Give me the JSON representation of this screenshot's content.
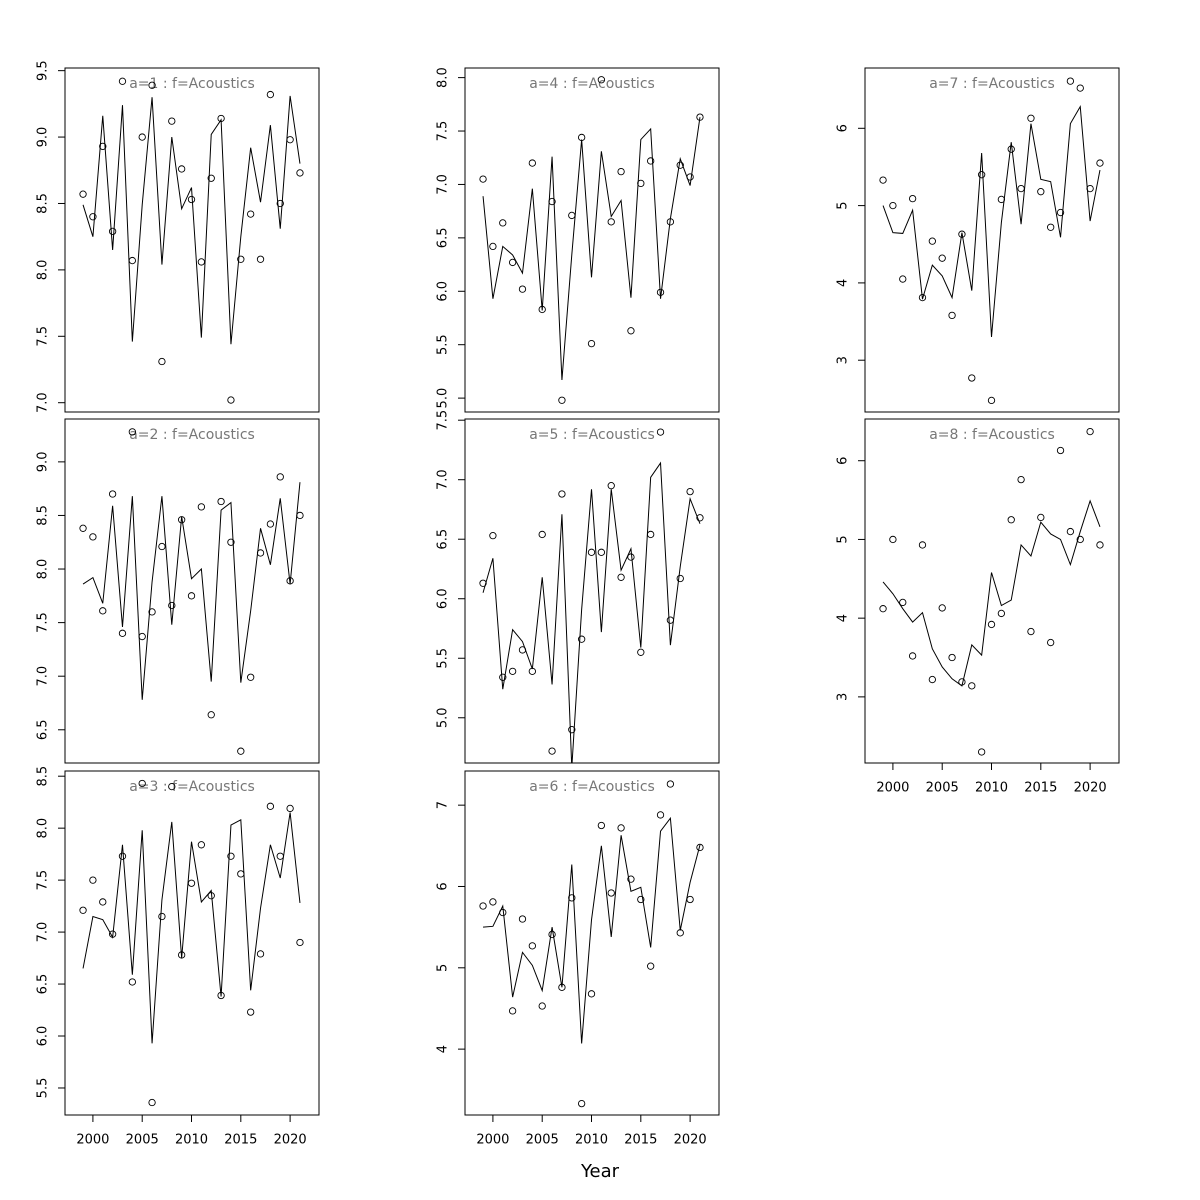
{
  "xlabel": "Year",
  "chart_data": [
    {
      "type": "line",
      "title": "a=1  :  f=Acoustics",
      "x": [
        1999,
        2000,
        2001,
        2002,
        2003,
        2004,
        2005,
        2006,
        2007,
        2008,
        2009,
        2010,
        2011,
        2012,
        2013,
        2014,
        2015,
        2016,
        2017,
        2018,
        2019,
        2020,
        2021
      ],
      "xlim": [
        1997.17,
        2022.93
      ],
      "ylim": [
        6.93,
        9.52
      ],
      "yticks": [
        {
          "value": 7,
          "label": "7.0"
        },
        {
          "value": 7.5,
          "label": "7.5"
        },
        {
          "value": 8,
          "label": "8.0"
        },
        {
          "value": 8.5,
          "label": "8.5"
        },
        {
          "value": 9,
          "label": "9.0"
        },
        {
          "value": 9.5,
          "label": "9.5"
        }
      ],
      "series": [
        {
          "style": "points",
          "color": "#000000",
          "values": [
            8.57,
            8.4,
            8.93,
            8.29,
            9.42,
            8.07,
            9.0,
            9.39,
            7.31,
            9.12,
            8.76,
            8.53,
            8.06,
            8.69,
            9.14,
            7.02,
            8.08,
            8.42,
            8.08,
            9.32,
            8.5,
            8.98,
            8.73
          ]
        },
        {
          "style": "line",
          "color": "#000000",
          "values": [
            8.49,
            8.25,
            9.16,
            8.15,
            9.24,
            7.46,
            8.49,
            9.3,
            8.04,
            9.0,
            8.46,
            8.62,
            7.49,
            9.02,
            9.13,
            7.44,
            8.25,
            8.92,
            8.51,
            9.09,
            8.31,
            9.31,
            8.8
          ]
        }
      ]
    },
    {
      "type": "line",
      "title": "a=2  :  f=Acoustics",
      "x": [
        1999,
        2000,
        2001,
        2002,
        2003,
        2004,
        2005,
        2006,
        2007,
        2008,
        2009,
        2010,
        2011,
        2012,
        2013,
        2014,
        2015,
        2016,
        2017,
        2018,
        2019,
        2020,
        2021
      ],
      "xlim": [
        1997.17,
        2022.93
      ],
      "ylim": [
        6.19,
        9.4
      ],
      "yticks": [
        {
          "value": 6.5,
          "label": "6.5"
        },
        {
          "value": 7,
          "label": "7.0"
        },
        {
          "value": 7.5,
          "label": "7.5"
        },
        {
          "value": 8,
          "label": "8.0"
        },
        {
          "value": 8.5,
          "label": "8.5"
        },
        {
          "value": 9,
          "label": "9.0"
        }
      ],
      "series": [
        {
          "style": "points",
          "color": "#000000",
          "values": [
            8.38,
            8.3,
            7.61,
            8.7,
            7.4,
            9.28,
            7.37,
            7.6,
            8.21,
            7.66,
            8.46,
            7.75,
            8.58,
            6.64,
            8.63,
            8.25,
            6.3,
            6.99,
            8.15,
            8.42,
            8.86,
            7.89,
            8.5
          ]
        },
        {
          "style": "line",
          "color": "#000000",
          "values": [
            7.86,
            7.92,
            7.68,
            8.59,
            7.46,
            8.68,
            6.78,
            7.88,
            8.68,
            7.48,
            8.49,
            7.91,
            8.0,
            6.95,
            8.55,
            8.62,
            6.94,
            7.61,
            8.38,
            8.04,
            8.66,
            7.86,
            8.81
          ]
        }
      ]
    },
    {
      "type": "line",
      "title": "a=3  :  f=Acoustics",
      "x": [
        1999,
        2000,
        2001,
        2002,
        2003,
        2004,
        2005,
        2006,
        2007,
        2008,
        2009,
        2010,
        2011,
        2012,
        2013,
        2014,
        2015,
        2016,
        2017,
        2018,
        2019,
        2020,
        2021
      ],
      "xlim": [
        1997.17,
        2022.93
      ],
      "ylim": [
        5.24,
        8.55
      ],
      "xticks": [
        2000,
        2005,
        2010,
        2015,
        2020
      ],
      "yticks": [
        {
          "value": 5.5,
          "label": "5.5"
        },
        {
          "value": 6,
          "label": "6.0"
        },
        {
          "value": 6.5,
          "label": "6.5"
        },
        {
          "value": 7,
          "label": "7.0"
        },
        {
          "value": 7.5,
          "label": "7.5"
        },
        {
          "value": 8,
          "label": "8.0"
        },
        {
          "value": 8.5,
          "label": "8.5"
        }
      ],
      "series": [
        {
          "style": "points",
          "color": "#000000",
          "values": [
            7.21,
            7.5,
            7.29,
            6.98,
            7.73,
            6.52,
            8.43,
            5.36,
            7.15,
            8.4,
            6.78,
            7.47,
            7.84,
            7.35,
            6.39,
            7.73,
            7.56,
            6.23,
            6.79,
            8.21,
            7.73,
            8.19,
            6.9
          ]
        },
        {
          "style": "line",
          "color": "#000000",
          "values": [
            6.65,
            7.15,
            7.12,
            6.95,
            7.84,
            6.59,
            7.98,
            5.93,
            7.31,
            8.06,
            6.75,
            7.87,
            7.29,
            7.4,
            6.38,
            8.03,
            8.08,
            6.44,
            7.23,
            7.84,
            7.52,
            8.15,
            7.28
          ]
        }
      ]
    },
    {
      "type": "line",
      "title": "a=4  :  f=Acoustics",
      "x": [
        1999,
        2000,
        2001,
        2002,
        2003,
        2004,
        2005,
        2006,
        2007,
        2008,
        2009,
        2010,
        2011,
        2012,
        2013,
        2014,
        2015,
        2016,
        2017,
        2018,
        2019,
        2020,
        2021
      ],
      "xlim": [
        1997.17,
        2022.93
      ],
      "ylim": [
        4.87,
        8.09
      ],
      "yticks": [
        {
          "value": 5,
          "label": "5.0"
        },
        {
          "value": 5.5,
          "label": "5.5"
        },
        {
          "value": 6,
          "label": "6.0"
        },
        {
          "value": 6.5,
          "label": "6.5"
        },
        {
          "value": 7,
          "label": "7.0"
        },
        {
          "value": 7.5,
          "label": "7.5"
        },
        {
          "value": 8,
          "label": "8.0"
        }
      ],
      "series": [
        {
          "style": "points",
          "color": "#000000",
          "values": [
            7.05,
            6.42,
            6.64,
            6.27,
            6.02,
            7.2,
            5.83,
            6.84,
            4.98,
            6.71,
            7.44,
            5.51,
            7.98,
            6.65,
            7.12,
            5.63,
            7.01,
            7.22,
            5.99,
            6.65,
            7.18,
            7.07,
            7.63
          ]
        },
        {
          "style": "line",
          "color": "#000000",
          "values": [
            6.89,
            5.93,
            6.42,
            6.34,
            6.17,
            6.96,
            5.82,
            7.26,
            5.17,
            6.34,
            7.42,
            6.13,
            7.31,
            6.7,
            6.85,
            5.94,
            7.42,
            7.52,
            5.93,
            6.68,
            7.24,
            6.99,
            7.63
          ]
        }
      ]
    },
    {
      "type": "line",
      "title": "a=5  :  f=Acoustics",
      "x": [
        1999,
        2000,
        2001,
        2002,
        2003,
        2004,
        2005,
        2006,
        2007,
        2008,
        2009,
        2010,
        2011,
        2012,
        2013,
        2014,
        2015,
        2016,
        2017,
        2018,
        2019,
        2020,
        2021
      ],
      "xlim": [
        1997.17,
        2022.93
      ],
      "ylim": [
        4.62,
        7.51
      ],
      "yticks": [
        {
          "value": 5,
          "label": "5.0"
        },
        {
          "value": 5.5,
          "label": "5.5"
        },
        {
          "value": 6,
          "label": "6.0"
        },
        {
          "value": 6.5,
          "label": "6.5"
        },
        {
          "value": 7,
          "label": "7.0"
        },
        {
          "value": 7.5,
          "label": "7.5"
        }
      ],
      "series": [
        {
          "style": "points",
          "color": "#000000",
          "values": [
            6.13,
            6.53,
            5.34,
            5.39,
            5.57,
            5.39,
            6.54,
            4.72,
            6.88,
            4.9,
            5.66,
            6.39,
            6.39,
            6.95,
            6.18,
            6.35,
            5.55,
            6.54,
            7.4,
            5.82,
            6.17,
            6.9,
            6.68
          ]
        },
        {
          "style": "line",
          "color": "#000000",
          "values": [
            6.05,
            6.34,
            5.24,
            5.74,
            5.64,
            5.41,
            6.18,
            5.28,
            6.71,
            4.58,
            5.91,
            6.92,
            5.72,
            6.92,
            6.24,
            6.42,
            5.59,
            7.02,
            7.14,
            5.61,
            6.27,
            6.84,
            6.63
          ]
        }
      ]
    },
    {
      "type": "line",
      "title": "a=6  :  f=Acoustics",
      "x": [
        1999,
        2000,
        2001,
        2002,
        2003,
        2004,
        2005,
        2006,
        2007,
        2008,
        2009,
        2010,
        2011,
        2012,
        2013,
        2014,
        2015,
        2016,
        2017,
        2018,
        2019,
        2020,
        2021
      ],
      "xlim": [
        1997.17,
        2022.93
      ],
      "ylim": [
        3.19,
        7.42
      ],
      "xticks": [
        2000,
        2005,
        2010,
        2015,
        2020
      ],
      "yticks": [
        4,
        5,
        6,
        7
      ],
      "series": [
        {
          "style": "points",
          "color": "#000000",
          "values": [
            5.76,
            5.81,
            5.68,
            4.47,
            5.6,
            5.27,
            4.53,
            5.41,
            4.76,
            5.86,
            3.33,
            4.68,
            6.75,
            5.92,
            6.72,
            6.09,
            5.84,
            5.02,
            6.88,
            7.26,
            5.43,
            5.84,
            6.48
          ]
        },
        {
          "style": "line",
          "color": "#000000",
          "values": [
            5.5,
            5.51,
            5.76,
            4.64,
            5.19,
            5.03,
            4.72,
            5.5,
            4.76,
            6.27,
            4.07,
            5.59,
            6.5,
            5.38,
            6.63,
            5.94,
            5.99,
            5.25,
            6.68,
            6.84,
            5.46,
            6.05,
            6.51
          ]
        }
      ]
    },
    {
      "type": "line",
      "title": "a=7  :  f=Acoustics",
      "x": [
        1999,
        2000,
        2001,
        2002,
        2003,
        2004,
        2005,
        2006,
        2007,
        2008,
        2009,
        2010,
        2011,
        2012,
        2013,
        2014,
        2015,
        2016,
        2017,
        2018,
        2019,
        2020,
        2021
      ],
      "xlim": [
        1997.17,
        2022.93
      ],
      "ylim": [
        2.33,
        6.78
      ],
      "yticks": [
        3,
        4,
        5,
        6
      ],
      "series": [
        {
          "style": "points",
          "color": "#000000",
          "values": [
            5.33,
            5.0,
            4.05,
            5.09,
            3.81,
            4.54,
            4.32,
            3.58,
            4.63,
            2.77,
            5.4,
            2.48,
            5.08,
            5.73,
            5.22,
            6.13,
            5.18,
            4.72,
            4.91,
            6.61,
            6.52,
            5.22,
            5.55
          ]
        },
        {
          "style": "line",
          "color": "#000000",
          "values": [
            5.0,
            4.65,
            4.64,
            4.94,
            3.79,
            4.23,
            4.09,
            3.81,
            4.65,
            3.9,
            5.68,
            3.3,
            4.78,
            5.82,
            4.76,
            6.06,
            5.34,
            5.31,
            4.59,
            6.06,
            6.28,
            4.8,
            5.46
          ]
        }
      ]
    },
    {
      "type": "line",
      "title": "a=8  :  f=Acoustics",
      "x": [
        1999,
        2000,
        2001,
        2002,
        2003,
        2004,
        2005,
        2006,
        2007,
        2008,
        2009,
        2010,
        2011,
        2012,
        2013,
        2014,
        2015,
        2016,
        2017,
        2018,
        2019,
        2020,
        2021
      ],
      "xlim": [
        1997.17,
        2022.93
      ],
      "ylim": [
        2.16,
        6.53
      ],
      "xticks": [
        2000,
        2005,
        2010,
        2015,
        2020
      ],
      "yticks": [
        3,
        4,
        5,
        6
      ],
      "series": [
        {
          "style": "points",
          "color": "#000000",
          "values": [
            4.12,
            5.0,
            4.2,
            3.52,
            4.93,
            3.22,
            4.13,
            3.5,
            3.19,
            3.14,
            2.3,
            3.92,
            4.06,
            5.25,
            5.76,
            3.83,
            5.28,
            3.69,
            6.13,
            5.1,
            5.0,
            6.37,
            4.93
          ]
        },
        {
          "style": "line",
          "color": "#000000",
          "values": [
            4.46,
            4.31,
            4.12,
            3.95,
            4.07,
            3.61,
            3.38,
            3.23,
            3.14,
            3.66,
            3.53,
            4.58,
            4.16,
            4.23,
            4.93,
            4.79,
            5.22,
            5.07,
            5.0,
            4.68,
            5.1,
            5.49,
            5.16
          ]
        }
      ]
    }
  ]
}
